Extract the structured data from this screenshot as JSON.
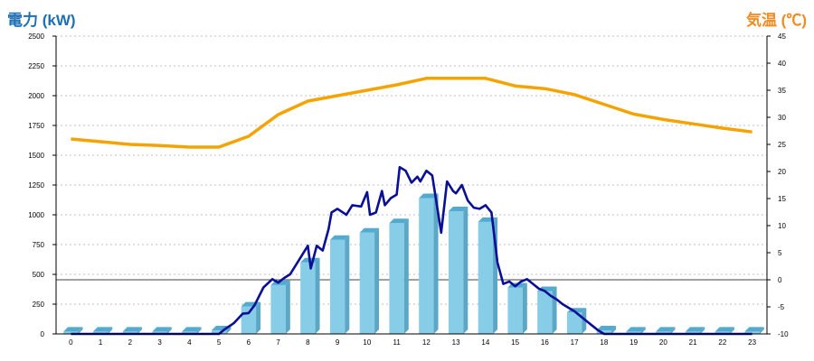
{
  "colors": {
    "left_title": "#1f6fb4",
    "right_title": "#f08c21",
    "bar_front": "#87cde8",
    "bar_top": "#52aad0",
    "bar_side": "#5ca7c6",
    "power_line": "#0a0f96",
    "temp_line": "#f5a300",
    "grid": "#bfbfbf"
  },
  "chart_data": {
    "type": "bar",
    "left_axis_title": "電力 (kW)",
    "right_axis_title": "気温 (℃)",
    "categories": [
      "0",
      "1",
      "2",
      "3",
      "4",
      "5",
      "6",
      "7",
      "8",
      "9",
      "10",
      "11",
      "12",
      "13",
      "14",
      "15",
      "16",
      "17",
      "18",
      "19",
      "20",
      "21",
      "22",
      "23"
    ],
    "ylim_left": [
      0,
      2500
    ],
    "yticks_left": [
      "0",
      "250",
      "500",
      "750",
      "1000",
      "1250",
      "1500",
      "1750",
      "2000",
      "2250",
      "2500"
    ],
    "ylim_right": [
      -10,
      45
    ],
    "yticks_right": [
      "-10",
      "-5",
      "0",
      "5",
      "10",
      "15",
      "20",
      "25",
      "30",
      "35",
      "40",
      "45"
    ],
    "grid": true,
    "series": [
      {
        "kind": "bar",
        "axis": "left",
        "values": [
          20,
          20,
          20,
          20,
          20,
          30,
          230,
          410,
          600,
          790,
          850,
          930,
          1140,
          1030,
          940,
          390,
          360,
          180,
          30,
          20,
          20,
          20,
          20,
          20
        ]
      },
      {
        "kind": "line",
        "axis": "left",
        "x": [
          0,
          0.5,
          1,
          1.5,
          2,
          2.5,
          3,
          3.5,
          4,
          4.5,
          5,
          5.2,
          5.5,
          5.8,
          6,
          6.2,
          6.5,
          6.8,
          7,
          7.2,
          7.4,
          7.6,
          7.8,
          8,
          8.1,
          8.3,
          8.5,
          8.7,
          8.8,
          9,
          9.3,
          9.5,
          9.8,
          10,
          10.1,
          10.3,
          10.5,
          10.6,
          10.8,
          11,
          11.1,
          11.3,
          11.5,
          11.7,
          11.8,
          12,
          12.2,
          12.5,
          12.7,
          12.9,
          13,
          13.2,
          13.4,
          13.6,
          13.8,
          14,
          14.2,
          14.4,
          14.6,
          14.8,
          15,
          15.2,
          15.4,
          15.6,
          15.8,
          16,
          16.2,
          16.4,
          16.6,
          16.8,
          17,
          17.2,
          17.4,
          17.6,
          17.8,
          18,
          18.5,
          19,
          19.5,
          20,
          20.5,
          21,
          21.5,
          22,
          22.5,
          23
        ],
        "values": [
          0,
          0,
          0,
          0,
          0,
          0,
          0,
          0,
          0,
          0,
          0,
          40,
          90,
          170,
          175,
          240,
          390,
          460,
          430,
          470,
          500,
          580,
          660,
          740,
          550,
          740,
          700,
          880,
          1020,
          1050,
          1000,
          1080,
          1070,
          1190,
          1000,
          1020,
          1200,
          1080,
          1140,
          1170,
          1400,
          1370,
          1270,
          1320,
          1280,
          1370,
          1330,
          850,
          1280,
          1200,
          1180,
          1250,
          1120,
          1060,
          1050,
          1080,
          1020,
          600,
          420,
          440,
          400,
          440,
          460,
          420,
          380,
          360,
          320,
          290,
          250,
          220,
          190,
          150,
          110,
          70,
          30,
          0,
          0,
          0,
          0,
          0,
          0,
          0,
          0,
          0,
          0,
          0
        ]
      },
      {
        "kind": "line",
        "axis": "right",
        "x": [
          0,
          1,
          2,
          3,
          4,
          5,
          6,
          7,
          8,
          9,
          10,
          11,
          12,
          13,
          14,
          15,
          16,
          17,
          18,
          19,
          20,
          21,
          22,
          23
        ],
        "values": [
          26,
          25.5,
          25,
          24.8,
          24.5,
          24.5,
          26.5,
          30.5,
          33,
          34,
          35,
          36,
          37.2,
          37.2,
          37.2,
          35.8,
          35.3,
          34.2,
          32.4,
          30.6,
          29.6,
          28.8,
          28,
          27.3
        ]
      }
    ]
  }
}
